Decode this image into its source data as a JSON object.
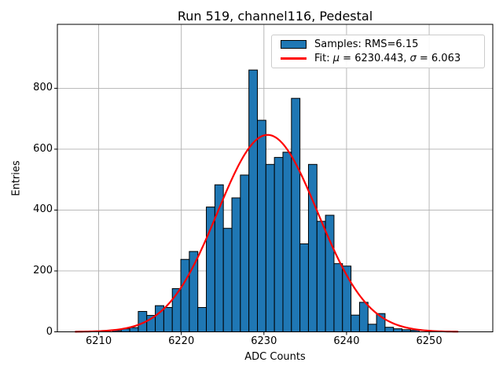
{
  "chart_data": {
    "type": "bar",
    "subtype": "histogram-with-gaussian-fit",
    "title": "Run 519, channel116, Pedestal",
    "xlabel": "ADC Counts",
    "ylabel": "Entries",
    "xlim": [
      6205.0,
      6257.7
    ],
    "ylim": [
      0,
      1010
    ],
    "xticks": [
      6210,
      6220,
      6230,
      6240,
      6250
    ],
    "yticks": [
      0,
      200,
      400,
      600,
      800
    ],
    "grid": true,
    "grid_color": "#b0b0b0",
    "bar_color": "#1f77b4",
    "bar_edge_color": "#000000",
    "fit_color": "#ff0000",
    "histogram": {
      "bin_start": 6211.7,
      "bin_width": 1.03,
      "counts": [
        4,
        10,
        14,
        67,
        54,
        86,
        80,
        142,
        238,
        264,
        80,
        410,
        483,
        340,
        440,
        515,
        860,
        695,
        550,
        573,
        590,
        767,
        289,
        550,
        363,
        383,
        224,
        216,
        55,
        97,
        25,
        60,
        15,
        10,
        7,
        5
      ]
    },
    "fit": {
      "mu": 6230.443,
      "sigma": 6.063,
      "amplitude": 647,
      "x_range": [
        6207.2,
        6253.5
      ]
    },
    "legend": {
      "position": "upper-right",
      "entries": [
        {
          "swatch": "patch",
          "fill": "#1f77b4",
          "edge": "#000000",
          "label": "Samples: RMS=6.15"
        },
        {
          "swatch": "line",
          "color": "#ff0000",
          "label": "Fit: μ = 6230.443, σ = 6.063"
        }
      ]
    }
  }
}
